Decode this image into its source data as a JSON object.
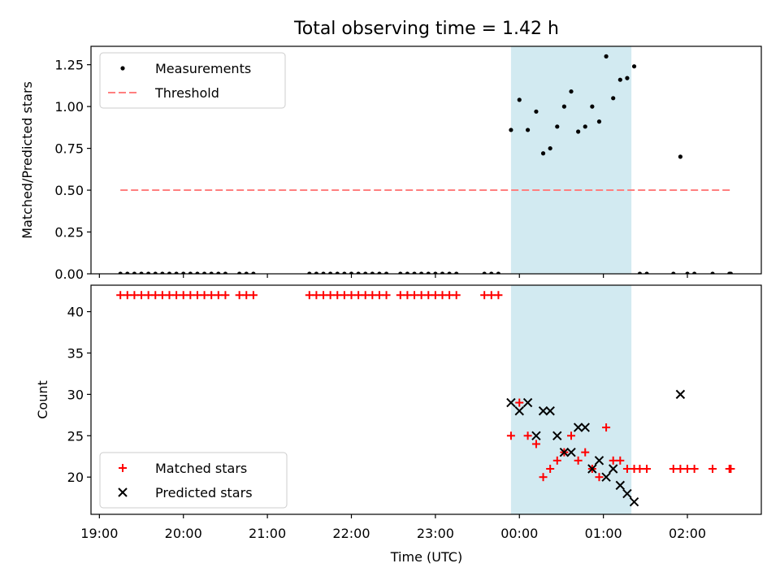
{
  "chart_data": {
    "type": "scatter",
    "title": "Total observing time = 1.42 h",
    "shaded_x_range": [
      "23:54",
      "01:20"
    ],
    "x_ticks": [
      "19:00",
      "20:00",
      "21:00",
      "22:00",
      "23:00",
      "00:00",
      "01:00",
      "02:00"
    ],
    "xlabel": "Time (UTC)",
    "colors": {
      "shade": "#add8e6",
      "threshold": "#ff7f7f",
      "matched": "#ff0000",
      "predicted": "#000000",
      "measurement": "#000000"
    },
    "panels": [
      {
        "ylabel": "Matched/Predicted stars",
        "ylim": [
          0,
          1.36
        ],
        "y_ticks": [
          "0.00",
          "0.25",
          "0.50",
          "0.75",
          "1.00",
          "1.25"
        ],
        "legend": [
          "Measurements",
          "Threshold"
        ],
        "legend_position": "upper left",
        "threshold": {
          "value": 0.5,
          "x_range": [
            "19:15",
            "02:32"
          ]
        },
        "measurements": [
          [
            "19:15",
            0
          ],
          [
            "19:20",
            0
          ],
          [
            "19:25",
            0
          ],
          [
            "19:30",
            0
          ],
          [
            "19:35",
            0
          ],
          [
            "19:40",
            0
          ],
          [
            "19:45",
            0
          ],
          [
            "19:50",
            0
          ],
          [
            "19:55",
            0
          ],
          [
            "20:00",
            0
          ],
          [
            "20:05",
            0
          ],
          [
            "20:10",
            0
          ],
          [
            "20:15",
            0
          ],
          [
            "20:20",
            0
          ],
          [
            "20:25",
            0
          ],
          [
            "20:30",
            0
          ],
          [
            "20:40",
            0
          ],
          [
            "20:45",
            0
          ],
          [
            "20:50",
            0
          ],
          [
            "21:30",
            0
          ],
          [
            "21:35",
            0
          ],
          [
            "21:40",
            0
          ],
          [
            "21:45",
            0
          ],
          [
            "21:50",
            0
          ],
          [
            "21:55",
            0
          ],
          [
            "22:00",
            0
          ],
          [
            "22:05",
            0
          ],
          [
            "22:10",
            0
          ],
          [
            "22:15",
            0
          ],
          [
            "22:20",
            0
          ],
          [
            "22:25",
            0
          ],
          [
            "22:35",
            0
          ],
          [
            "22:40",
            0
          ],
          [
            "22:45",
            0
          ],
          [
            "22:50",
            0
          ],
          [
            "22:55",
            0
          ],
          [
            "23:00",
            0
          ],
          [
            "23:05",
            0
          ],
          [
            "23:10",
            0
          ],
          [
            "23:15",
            0
          ],
          [
            "23:35",
            0
          ],
          [
            "23:40",
            0
          ],
          [
            "23:45",
            0
          ],
          [
            "23:54",
            0.86
          ],
          [
            "00:00",
            1.04
          ],
          [
            "00:06",
            0.86
          ],
          [
            "00:12",
            0.97
          ],
          [
            "00:17",
            0.72
          ],
          [
            "00:22",
            0.75
          ],
          [
            "00:27",
            0.88
          ],
          [
            "00:32",
            1.0
          ],
          [
            "00:37",
            1.09
          ],
          [
            "00:42",
            0.85
          ],
          [
            "00:47",
            0.88
          ],
          [
            "00:52",
            1.0
          ],
          [
            "00:57",
            0.91
          ],
          [
            "01:02",
            1.3
          ],
          [
            "01:07",
            1.05
          ],
          [
            "01:12",
            1.16
          ],
          [
            "01:17",
            1.17
          ],
          [
            "01:22",
            1.24
          ],
          [
            "01:26",
            0
          ],
          [
            "01:31",
            0
          ],
          [
            "01:50",
            0
          ],
          [
            "01:55",
            0.7
          ],
          [
            "02:00",
            0
          ],
          [
            "02:05",
            0
          ],
          [
            "02:18",
            0
          ],
          [
            "02:30",
            0
          ],
          [
            "02:31",
            0
          ]
        ]
      },
      {
        "ylabel": "Count",
        "ylim": [
          15.5,
          43.2
        ],
        "y_ticks": [
          "20",
          "25",
          "30",
          "35",
          "40"
        ],
        "legend": [
          "Matched stars",
          "Predicted stars"
        ],
        "legend_position": "lower left",
        "matched": [
          [
            "19:15",
            42
          ],
          [
            "19:20",
            42
          ],
          [
            "19:25",
            42
          ],
          [
            "19:30",
            42
          ],
          [
            "19:35",
            42
          ],
          [
            "19:40",
            42
          ],
          [
            "19:45",
            42
          ],
          [
            "19:50",
            42
          ],
          [
            "19:55",
            42
          ],
          [
            "20:00",
            42
          ],
          [
            "20:05",
            42
          ],
          [
            "20:10",
            42
          ],
          [
            "20:15",
            42
          ],
          [
            "20:20",
            42
          ],
          [
            "20:25",
            42
          ],
          [
            "20:30",
            42
          ],
          [
            "20:40",
            42
          ],
          [
            "20:45",
            42
          ],
          [
            "20:50",
            42
          ],
          [
            "21:30",
            42
          ],
          [
            "21:35",
            42
          ],
          [
            "21:40",
            42
          ],
          [
            "21:45",
            42
          ],
          [
            "21:50",
            42
          ],
          [
            "21:55",
            42
          ],
          [
            "22:00",
            42
          ],
          [
            "22:05",
            42
          ],
          [
            "22:10",
            42
          ],
          [
            "22:15",
            42
          ],
          [
            "22:20",
            42
          ],
          [
            "22:25",
            42
          ],
          [
            "22:35",
            42
          ],
          [
            "22:40",
            42
          ],
          [
            "22:45",
            42
          ],
          [
            "22:50",
            42
          ],
          [
            "22:55",
            42
          ],
          [
            "23:00",
            42
          ],
          [
            "23:05",
            42
          ],
          [
            "23:10",
            42
          ],
          [
            "23:15",
            42
          ],
          [
            "23:35",
            42
          ],
          [
            "23:40",
            42
          ],
          [
            "23:45",
            42
          ],
          [
            "23:54",
            25
          ],
          [
            "00:00",
            29
          ],
          [
            "00:06",
            25
          ],
          [
            "00:12",
            24
          ],
          [
            "00:17",
            20
          ],
          [
            "00:22",
            21
          ],
          [
            "00:27",
            22
          ],
          [
            "00:32",
            23
          ],
          [
            "00:37",
            25
          ],
          [
            "00:42",
            22
          ],
          [
            "00:47",
            23
          ],
          [
            "00:52",
            21
          ],
          [
            "00:57",
            20
          ],
          [
            "01:02",
            26
          ],
          [
            "01:07",
            22
          ],
          [
            "01:12",
            22
          ],
          [
            "01:17",
            21
          ],
          [
            "01:22",
            21
          ],
          [
            "01:26",
            21
          ],
          [
            "01:31",
            21
          ],
          [
            "01:50",
            21
          ],
          [
            "01:55",
            21
          ],
          [
            "02:00",
            21
          ],
          [
            "02:05",
            21
          ],
          [
            "02:18",
            21
          ],
          [
            "02:30",
            21
          ],
          [
            "02:31",
            21
          ]
        ],
        "predicted": [
          [
            "23:54",
            29
          ],
          [
            "00:00",
            28
          ],
          [
            "00:06",
            29
          ],
          [
            "00:12",
            25
          ],
          [
            "00:17",
            28
          ],
          [
            "00:22",
            28
          ],
          [
            "00:27",
            25
          ],
          [
            "00:32",
            23
          ],
          [
            "00:37",
            23
          ],
          [
            "00:42",
            26
          ],
          [
            "00:47",
            26
          ],
          [
            "00:52",
            21
          ],
          [
            "00:57",
            22
          ],
          [
            "01:02",
            20
          ],
          [
            "01:07",
            21
          ],
          [
            "01:12",
            19
          ],
          [
            "01:17",
            18
          ],
          [
            "01:22",
            17
          ],
          [
            "01:55",
            30
          ]
        ]
      }
    ]
  }
}
